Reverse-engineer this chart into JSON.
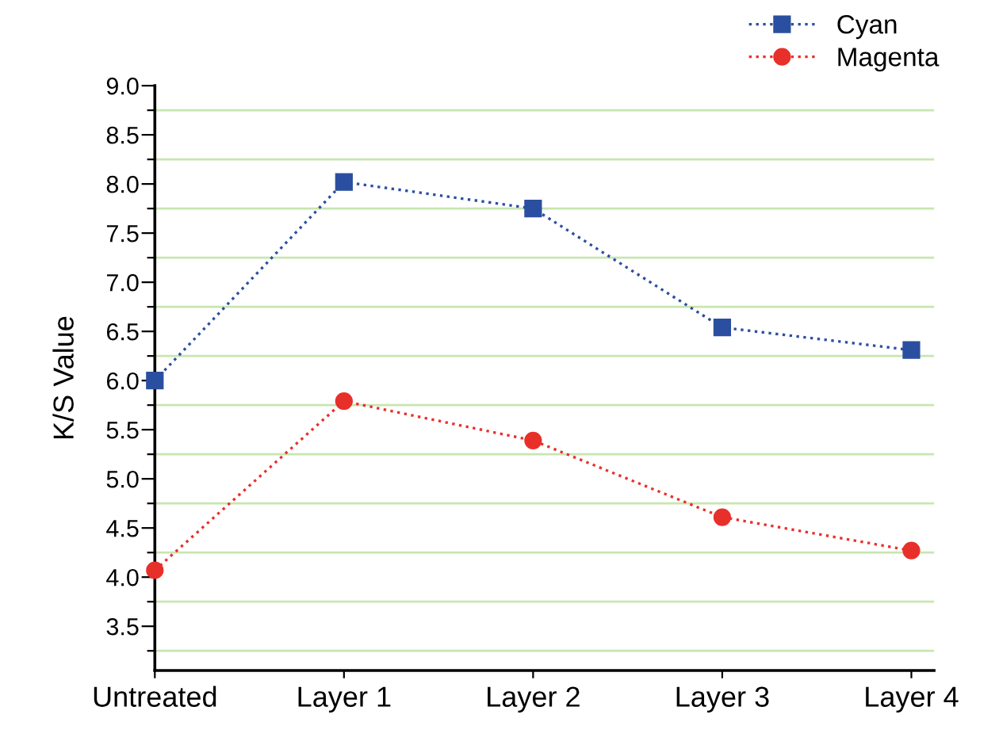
{
  "chart_data": {
    "type": "line",
    "ylabel": "K/S Value",
    "categories": [
      "Untreated",
      "Layer 1",
      "Layer 2",
      "Layer 3",
      "Layer 4"
    ],
    "series": [
      {
        "name": "Cyan",
        "color": "#2b4fa0",
        "marker": "square",
        "values": [
          6.0,
          8.02,
          7.75,
          6.54,
          6.31
        ]
      },
      {
        "name": "Magenta",
        "color": "#e8302a",
        "marker": "circle",
        "values": [
          4.07,
          5.79,
          5.39,
          4.61,
          4.27
        ]
      }
    ],
    "ylim": [
      3.05,
      9.0
    ],
    "yticks": [
      {
        "value": 3.25,
        "label": null
      },
      3.5,
      {
        "value": 3.75,
        "label": null
      },
      {
        "value": 4,
        "label": "4.0"
      },
      {
        "value": 4.25,
        "label": null
      },
      4.5,
      {
        "value": 4.75,
        "label": null
      },
      {
        "value": 5,
        "label": "5.0"
      },
      {
        "value": 5.25,
        "label": null
      },
      5.5,
      {
        "value": 5.75,
        "label": null
      },
      {
        "value": 6,
        "label": "6.0"
      },
      {
        "value": 6.25,
        "label": null
      },
      6.5,
      {
        "value": 6.75,
        "label": null
      },
      {
        "value": 7,
        "label": "7.0"
      },
      {
        "value": 7.25,
        "label": null
      },
      7.5,
      {
        "value": 7.75,
        "label": null
      },
      {
        "value": 8,
        "label": "8.0"
      },
      {
        "value": 8.25,
        "label": null
      },
      8.5,
      {
        "value": 8.75,
        "label": null
      },
      {
        "value": 9,
        "label": "9.0"
      }
    ],
    "grid": "y",
    "line_style": "dotted",
    "legend": "top right"
  }
}
